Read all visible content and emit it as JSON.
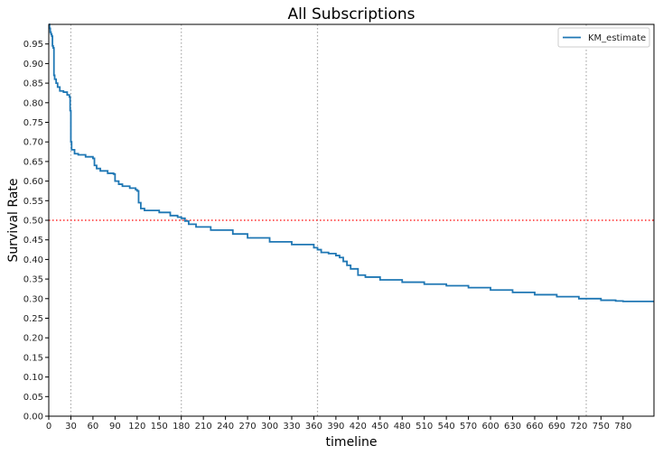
{
  "chart_data": {
    "type": "line",
    "title": "All Subscriptions",
    "xlabel": "timeline",
    "ylabel": "Survival Rate",
    "xlim": [
      0,
      822
    ],
    "ylim": [
      0,
      1.0
    ],
    "x_ticks": [
      0,
      30,
      60,
      90,
      120,
      150,
      180,
      210,
      240,
      270,
      300,
      330,
      360,
      390,
      420,
      450,
      480,
      510,
      540,
      570,
      600,
      630,
      660,
      690,
      720,
      750,
      780
    ],
    "y_ticks": [
      0.0,
      0.05,
      0.1,
      0.15,
      0.2,
      0.25,
      0.3,
      0.35,
      0.4,
      0.45,
      0.5,
      0.55,
      0.6,
      0.65,
      0.7,
      0.75,
      0.8,
      0.85,
      0.9,
      0.95
    ],
    "y_tick_labels": [
      "0.00",
      "0.05",
      "0.10",
      "0.15",
      "0.20",
      "0.25",
      "0.30",
      "0.35",
      "0.40",
      "0.45",
      "0.50",
      "0.55",
      "0.60",
      "0.65",
      "0.70",
      "0.75",
      "0.80",
      "0.85",
      "0.90",
      "0.95"
    ],
    "grid": false,
    "legend_position": "top-right",
    "series": [
      {
        "name": "KM_estimate",
        "color": "#1f77b4",
        "step": true,
        "x": [
          0,
          1,
          2,
          3,
          4,
          5,
          6,
          7,
          8,
          10,
          12,
          15,
          20,
          25,
          28,
          29,
          30,
          31,
          35,
          40,
          50,
          60,
          62,
          65,
          70,
          80,
          88,
          90,
          95,
          100,
          110,
          118,
          120,
          122,
          125,
          130,
          150,
          165,
          175,
          180,
          185,
          190,
          200,
          220,
          250,
          270,
          300,
          330,
          360,
          365,
          370,
          380,
          390,
          395,
          400,
          405,
          410,
          420,
          430,
          450,
          480,
          510,
          540,
          570,
          600,
          630,
          660,
          690,
          720,
          750,
          770,
          780,
          800,
          822
        ],
        "y": [
          1.0,
          0.99,
          0.98,
          0.975,
          0.97,
          0.945,
          0.94,
          0.87,
          0.86,
          0.85,
          0.84,
          0.83,
          0.827,
          0.82,
          0.815,
          0.78,
          0.7,
          0.68,
          0.67,
          0.667,
          0.662,
          0.658,
          0.64,
          0.632,
          0.626,
          0.62,
          0.618,
          0.6,
          0.592,
          0.587,
          0.582,
          0.578,
          0.575,
          0.545,
          0.53,
          0.525,
          0.52,
          0.512,
          0.508,
          0.505,
          0.498,
          0.49,
          0.483,
          0.475,
          0.465,
          0.455,
          0.445,
          0.438,
          0.43,
          0.425,
          0.418,
          0.415,
          0.41,
          0.405,
          0.395,
          0.385,
          0.376,
          0.36,
          0.355,
          0.348,
          0.342,
          0.337,
          0.333,
          0.328,
          0.322,
          0.316,
          0.31,
          0.305,
          0.3,
          0.296,
          0.294,
          0.293,
          0.293,
          0.293
        ]
      }
    ],
    "reference_lines": {
      "horizontal": [
        {
          "y": 0.5,
          "color": "#ff0000",
          "style": "dotted"
        }
      ],
      "vertical": [
        {
          "x": 30,
          "color": "#aaaaaa",
          "style": "dotted"
        },
        {
          "x": 180,
          "color": "#aaaaaa",
          "style": "dotted"
        },
        {
          "x": 365,
          "color": "#aaaaaa",
          "style": "dotted"
        },
        {
          "x": 730,
          "color": "#aaaaaa",
          "style": "dotted"
        }
      ]
    }
  }
}
